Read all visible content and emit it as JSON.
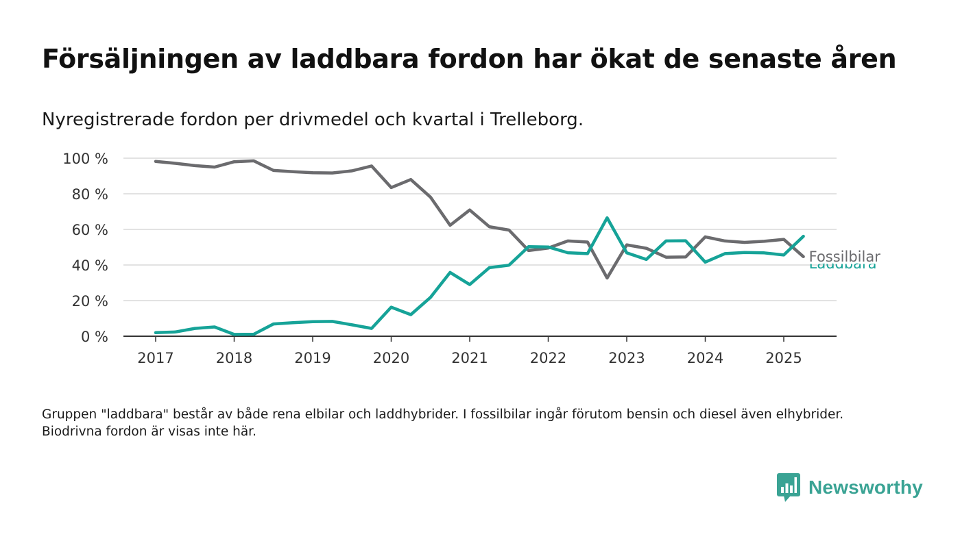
{
  "title": "Försäljningen av laddbara fordon har ökat de senaste åren",
  "subtitle": "Nyregistrerade fordon per drivmedel och kvartal i Trelleborg.",
  "footnote": "Gruppen \"laddbara\" består av både rena elbilar och laddhybrider. I fossilbilar ingår förutom bensin och diesel även elhybrider. Biodrivna fordon är visas inte här.",
  "brand": {
    "name": "Newsworthy",
    "icon": "newsworthy-bar-chart-icon",
    "color": "#3aa394"
  },
  "colors": {
    "fossil": "#6b6b6e",
    "laddbara": "#16a398",
    "grid": "#d9d9d9",
    "axis": "#333333"
  },
  "chart_data": {
    "type": "line",
    "title": "Försäljningen av laddbara fordon har ökat de senaste åren",
    "subtitle": "Nyregistrerade fordon per drivmedel och kvartal i Trelleborg.",
    "xlabel": "",
    "ylabel": "",
    "ylim": [
      0,
      100
    ],
    "y_ticks": [
      0,
      20,
      40,
      60,
      80,
      100
    ],
    "y_tick_labels": [
      "0 %",
      "20 %",
      "40 %",
      "60 %",
      "80 %",
      "100 %"
    ],
    "x_ticks": [
      2017,
      2018,
      2019,
      2020,
      2021,
      2022,
      2023,
      2024,
      2025
    ],
    "x_tick_labels": [
      "2017",
      "2018",
      "2019",
      "2020",
      "2021",
      "2022",
      "2023",
      "2024",
      "2025"
    ],
    "grid": true,
    "x": [
      "2017-Q1",
      "2017-Q2",
      "2017-Q3",
      "2017-Q4",
      "2018-Q1",
      "2018-Q2",
      "2018-Q3",
      "2018-Q4",
      "2019-Q1",
      "2019-Q2",
      "2019-Q3",
      "2019-Q4",
      "2020-Q1",
      "2020-Q2",
      "2020-Q3",
      "2020-Q4",
      "2021-Q1",
      "2021-Q2",
      "2021-Q3",
      "2021-Q4",
      "2022-Q1",
      "2022-Q2",
      "2022-Q3",
      "2022-Q4",
      "2023-Q1",
      "2023-Q2",
      "2023-Q3",
      "2023-Q4",
      "2024-Q1",
      "2024-Q2",
      "2024-Q3",
      "2024-Q4",
      "2025-Q1",
      "2025-Q2"
    ],
    "series": [
      {
        "name": "Fossilbilar",
        "color": "#6b6b6e",
        "values": [
          98.2,
          97.1,
          95.8,
          95.0,
          98.0,
          98.5,
          93.1,
          92.4,
          91.8,
          91.7,
          92.9,
          95.6,
          83.5,
          88.0,
          78.1,
          62.3,
          70.9,
          61.5,
          59.6,
          48.1,
          49.5,
          53.5,
          52.9,
          32.7,
          51.3,
          49.4,
          44.4,
          44.5,
          55.8,
          53.5,
          52.7,
          53.3,
          54.4,
          44.7
        ]
      },
      {
        "name": "Laddbara",
        "color": "#16a398",
        "values": [
          2.0,
          2.4,
          4.4,
          5.2,
          1.0,
          1.1,
          6.9,
          7.6,
          8.2,
          8.3,
          6.4,
          4.4,
          16.3,
          12.1,
          21.8,
          35.8,
          29.0,
          38.5,
          39.9,
          50.3,
          50.1,
          46.9,
          46.4,
          66.5,
          46.8,
          43.1,
          53.5,
          53.6,
          41.6,
          46.4,
          47.0,
          46.8,
          45.6,
          56.1
        ]
      }
    ],
    "legend": "line-end labels"
  }
}
